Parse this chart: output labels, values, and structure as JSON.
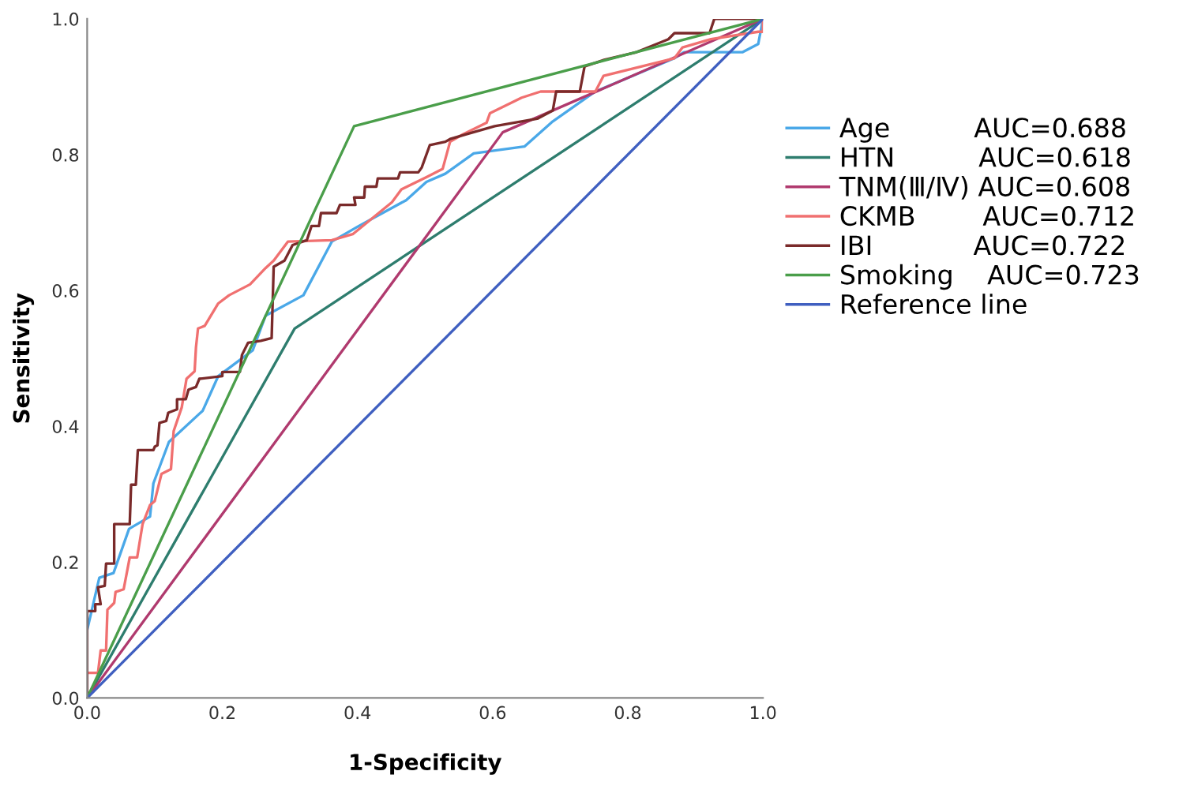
{
  "chart_data": {
    "type": "line",
    "xlabel": "1-Specificity",
    "ylabel": "Sensitivity",
    "xlim": [
      0,
      1
    ],
    "ylim": [
      0,
      1
    ],
    "xticks": [
      {
        "value": 0,
        "label": "0.0"
      },
      {
        "value": 0.2,
        "label": "0.2"
      },
      {
        "value": 0.4,
        "label": "0.4"
      },
      {
        "value": 0.6,
        "label": "0.6"
      },
      {
        "value": 0.8,
        "label": "0.8"
      },
      {
        "value": 1,
        "label": "1.0"
      }
    ],
    "yticks": [
      {
        "value": 0,
        "label": "0.0"
      },
      {
        "value": 0.2,
        "label": "0.2"
      },
      {
        "value": 0.4,
        "label": "0.4"
      },
      {
        "value": 0.6,
        "label": "0.6"
      },
      {
        "value": 0.8,
        "label": "0.8"
      },
      {
        "value": 1,
        "label": "1.0"
      }
    ],
    "grid": false,
    "legend": "right",
    "marker": "none",
    "line_style": "solid",
    "series": [
      {
        "name": "Age          AUC=0.688",
        "color": "#4aa8e8",
        "x": [
          0,
          0,
          0.018,
          0.039,
          0.062,
          0.093,
          0.098,
          0.121,
          0.171,
          0.194,
          0.245,
          0.264,
          0.32,
          0.362,
          0.402,
          0.472,
          0.502,
          0.53,
          0.572,
          0.647,
          0.689,
          0.752,
          0.869,
          0.883,
          0.97,
          0.993,
          1
        ],
        "values": [
          0,
          0.1,
          0.177,
          0.184,
          0.249,
          0.267,
          0.316,
          0.377,
          0.423,
          0.474,
          0.512,
          0.563,
          0.593,
          0.672,
          0.695,
          0.733,
          0.76,
          0.772,
          0.802,
          0.812,
          0.849,
          0.893,
          0.942,
          0.951,
          0.951,
          0.963,
          1
        ]
      },
      {
        "name": "HTN          AUC=0.618",
        "color": "#2e7d6e",
        "x": [
          0,
          0.307,
          1
        ],
        "values": [
          0,
          0.544,
          1
        ]
      },
      {
        "name": "TNM(Ⅲ/Ⅳ) AUC=0.608",
        "color": "#b03a6e",
        "x": [
          0,
          0.615,
          1
        ],
        "values": [
          0,
          0.833,
          1
        ]
      },
      {
        "name": "CKMB        AUC=0.712",
        "color": "#f07070",
        "x": [
          0,
          0,
          0.016,
          0.02,
          0.028,
          0.03,
          0.04,
          0.042,
          0.054,
          0.063,
          0.074,
          0.082,
          0.093,
          0.1,
          0.11,
          0.124,
          0.128,
          0.14,
          0.147,
          0.159,
          0.161,
          0.164,
          0.174,
          0.194,
          0.21,
          0.241,
          0.264,
          0.276,
          0.297,
          0.362,
          0.393,
          0.451,
          0.465,
          0.502,
          0.526,
          0.537,
          0.556,
          0.591,
          0.596,
          0.643,
          0.671,
          0.752,
          0.764,
          0.869,
          0.881,
          0.923,
          0.993,
          1,
          1
        ],
        "values": [
          0,
          0.037,
          0.037,
          0.07,
          0.07,
          0.13,
          0.14,
          0.156,
          0.16,
          0.207,
          0.207,
          0.256,
          0.284,
          0.29,
          0.33,
          0.337,
          0.393,
          0.428,
          0.47,
          0.481,
          0.516,
          0.544,
          0.548,
          0.581,
          0.593,
          0.609,
          0.633,
          0.644,
          0.672,
          0.674,
          0.683,
          0.73,
          0.749,
          0.767,
          0.779,
          0.819,
          0.83,
          0.847,
          0.861,
          0.884,
          0.893,
          0.893,
          0.916,
          0.942,
          0.958,
          0.97,
          0.981,
          0.981,
          1
        ]
      },
      {
        "name": "IBI            AUC=0.722",
        "color": "#7a2a2a",
        "x": [
          0,
          0,
          0.012,
          0.012,
          0.02,
          0.016,
          0.026,
          0.028,
          0.04,
          0.04,
          0.063,
          0.065,
          0.072,
          0.075,
          0.098,
          0.1,
          0.104,
          0.107,
          0.117,
          0.12,
          0.133,
          0.133,
          0.146,
          0.15,
          0.161,
          0.166,
          0.2,
          0.2,
          0.226,
          0.229,
          0.238,
          0.257,
          0.273,
          0.276,
          0.292,
          0.304,
          0.325,
          0.332,
          0.343,
          0.346,
          0.369,
          0.374,
          0.397,
          0.395,
          0.41,
          0.411,
          0.428,
          0.43,
          0.46,
          0.463,
          0.49,
          0.495,
          0.507,
          0.53,
          0.537,
          0.561,
          0.603,
          0.666,
          0.689,
          0.694,
          0.729,
          0.736,
          0.766,
          0.813,
          0.86,
          0.869,
          0.921,
          0.928,
          1
        ],
        "values": [
          0,
          0.128,
          0.128,
          0.138,
          0.138,
          0.163,
          0.165,
          0.198,
          0.198,
          0.256,
          0.256,
          0.314,
          0.314,
          0.365,
          0.365,
          0.37,
          0.372,
          0.405,
          0.408,
          0.42,
          0.425,
          0.44,
          0.44,
          0.454,
          0.458,
          0.47,
          0.474,
          0.48,
          0.48,
          0.505,
          0.523,
          0.526,
          0.53,
          0.635,
          0.644,
          0.667,
          0.674,
          0.695,
          0.695,
          0.714,
          0.714,
          0.726,
          0.726,
          0.737,
          0.737,
          0.753,
          0.753,
          0.765,
          0.765,
          0.774,
          0.774,
          0.781,
          0.814,
          0.819,
          0.823,
          0.83,
          0.842,
          0.853,
          0.865,
          0.893,
          0.893,
          0.93,
          0.94,
          0.951,
          0.97,
          0.979,
          0.979,
          1,
          1
        ]
      },
      {
        "name": "Smoking    AUC=0.723",
        "color": "#4a9e4a",
        "x": [
          0,
          0.395,
          1
        ],
        "values": [
          0,
          0.842,
          1
        ]
      },
      {
        "name": "Reference line",
        "color": "#3f5fc0",
        "x": [
          0,
          1
        ],
        "values": [
          0,
          1
        ]
      }
    ]
  }
}
